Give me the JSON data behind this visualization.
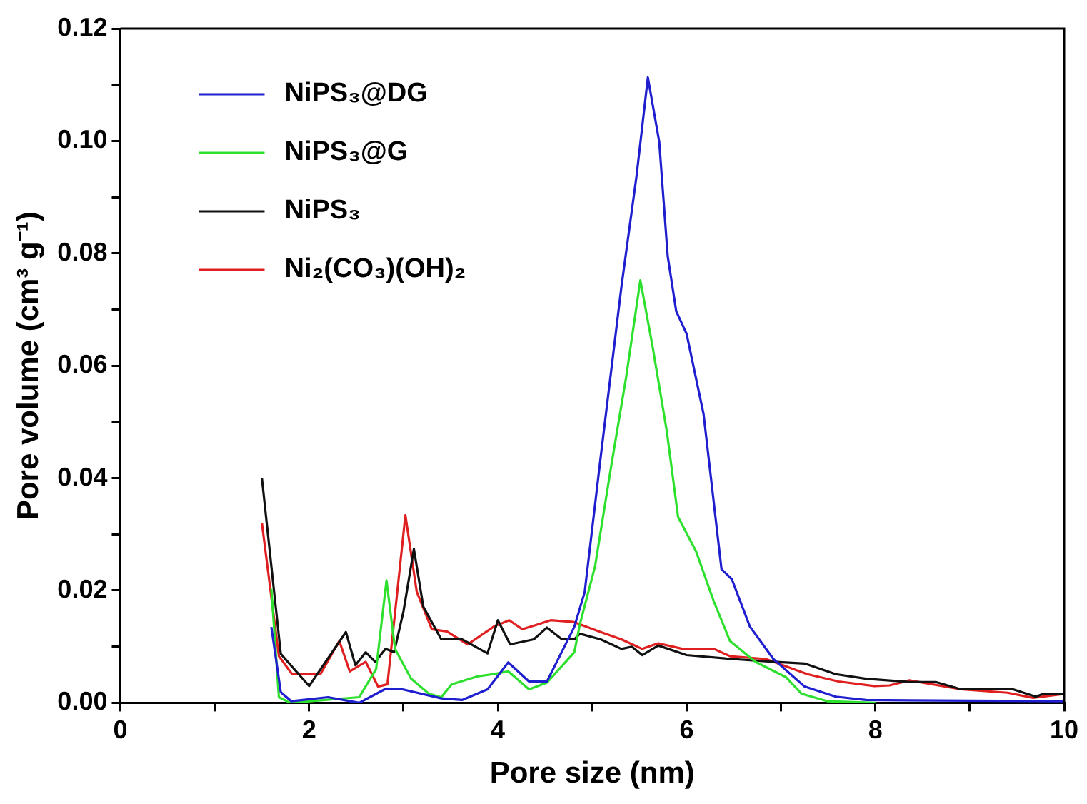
{
  "chart_data": {
    "type": "line",
    "xlabel": "Pore size (nm)",
    "ylabel": "Pore volume (cm³ g⁻¹)",
    "xlim": [
      0,
      10
    ],
    "ylim": [
      0,
      0.12
    ],
    "xticks": [
      0,
      {
        "value": 1,
        "label": null
      },
      2,
      {
        "value": 3,
        "label": null
      },
      4,
      {
        "value": 5,
        "label": null
      },
      6,
      {
        "value": 7,
        "label": null
      },
      8,
      {
        "value": 9,
        "label": null
      },
      10
    ],
    "yticks": [
      {
        "value": 0,
        "label": "0.00"
      },
      {
        "value": 0.01,
        "label": null
      },
      {
        "value": 0.02,
        "label": "0.02"
      },
      {
        "value": 0.03,
        "label": null
      },
      {
        "value": 0.04,
        "label": "0.04"
      },
      {
        "value": 0.05,
        "label": null
      },
      {
        "value": 0.06,
        "label": "0.06"
      },
      {
        "value": 0.07,
        "label": null
      },
      {
        "value": 0.08,
        "label": "0.08"
      },
      {
        "value": 0.09,
        "label": null
      },
      {
        "value": 0.1,
        "label": "0.10"
      },
      {
        "value": 0.11,
        "label": null
      },
      {
        "value": 0.12,
        "label": "0.12"
      }
    ],
    "legend": "top left",
    "marker": "none",
    "line_style": "solid",
    "series": [
      {
        "name": "NiPS₃@DG",
        "color": "#1f1fd0",
        "x": [
          1.6,
          1.7,
          1.81,
          2.2,
          2.53,
          2.8,
          2.99,
          3.4,
          3.62,
          3.89,
          4.11,
          4.33,
          4.52,
          4.81,
          4.92,
          5.09,
          5.31,
          5.47,
          5.59,
          5.71,
          5.8,
          5.89,
          6.0,
          6.18,
          6.37,
          6.48,
          6.67,
          6.92,
          7.25,
          7.58,
          7.9,
          10
        ],
        "values": [
          0.0135,
          0.0019,
          0.0003,
          0.001,
          0,
          0.0024,
          0.0024,
          0.0008,
          0.0005,
          0.0024,
          0.0072,
          0.0038,
          0.0038,
          0.0135,
          0.0197,
          0.0438,
          0.0741,
          0.0938,
          0.1113,
          0.0999,
          0.0795,
          0.0697,
          0.0657,
          0.0514,
          0.0238,
          0.022,
          0.0136,
          0.0078,
          0.0029,
          0.0011,
          0.0005,
          0.0003
        ]
      },
      {
        "name": "NiPS₃@G",
        "color": "#2ee02e",
        "x": [
          1.6,
          1.68,
          1.8,
          2.53,
          2.71,
          2.82,
          2.91,
          3.08,
          3.27,
          3.4,
          3.51,
          3.78,
          3.95,
          4.11,
          4.33,
          4.52,
          4.81,
          4.87,
          5.03,
          5.2,
          5.36,
          5.51,
          5.64,
          5.79,
          5.91,
          6.1,
          6.29,
          6.46,
          6.73,
          7.05,
          7.22,
          7.49,
          8
        ],
        "values": [
          0.0203,
          0.001,
          0,
          0.001,
          0.006,
          0.0218,
          0.0096,
          0.0043,
          0.0016,
          0.001,
          0.0033,
          0.0047,
          0.0051,
          0.0056,
          0.0024,
          0.0036,
          0.009,
          0.014,
          0.0243,
          0.042,
          0.058,
          0.0752,
          0.0634,
          0.0484,
          0.0331,
          0.027,
          0.018,
          0.011,
          0.0073,
          0.0046,
          0.0016,
          0.0003,
          0
        ]
      },
      {
        "name": "NiPS₃",
        "color": "#111111",
        "x": [
          1.5,
          1.7,
          2.0,
          2.39,
          2.49,
          2.6,
          2.7,
          2.81,
          2.9,
          3.0,
          3.11,
          3.21,
          3.4,
          3.62,
          3.89,
          4.0,
          4.13,
          4.38,
          4.52,
          4.68,
          4.81,
          4.87,
          5.09,
          5.31,
          5.42,
          5.53,
          5.7,
          6.0,
          6.48,
          6.92,
          7.25,
          7.58,
          7.9,
          8.36,
          8.64,
          8.91,
          9.46,
          9.7,
          9.78,
          10
        ],
        "values": [
          0.04,
          0.0087,
          0.003,
          0.0126,
          0.0067,
          0.009,
          0.0073,
          0.0096,
          0.009,
          0.0163,
          0.0274,
          0.0171,
          0.0113,
          0.0113,
          0.0088,
          0.0147,
          0.0104,
          0.0113,
          0.0134,
          0.0113,
          0.0113,
          0.0123,
          0.0113,
          0.0096,
          0.01,
          0.0085,
          0.0102,
          0.0085,
          0.0078,
          0.0073,
          0.007,
          0.0051,
          0.0043,
          0.0037,
          0.0037,
          0.0024,
          0.0024,
          0.0011,
          0.0016,
          0.0016
        ]
      },
      {
        "name": "Ni₂(CO₃)(OH)₂",
        "color": "#e02020",
        "x": [
          1.5,
          1.68,
          1.82,
          2.12,
          2.32,
          2.43,
          2.6,
          2.73,
          2.83,
          3.02,
          3.14,
          3.3,
          3.46,
          3.68,
          3.96,
          4.12,
          4.26,
          4.45,
          4.56,
          4.8,
          5.09,
          5.31,
          5.53,
          5.7,
          5.96,
          6.29,
          6.46,
          6.84,
          7.28,
          7.61,
          7.99,
          8.15,
          8.36,
          8.91,
          9.4,
          9.67,
          10
        ],
        "values": [
          0.032,
          0.0083,
          0.0051,
          0.0051,
          0.011,
          0.0056,
          0.0073,
          0.0029,
          0.0033,
          0.0334,
          0.0198,
          0.0131,
          0.0127,
          0.0104,
          0.0136,
          0.0147,
          0.0131,
          0.0141,
          0.0147,
          0.0144,
          0.0126,
          0.0113,
          0.0096,
          0.0106,
          0.0096,
          0.0096,
          0.0083,
          0.0078,
          0.0051,
          0.0038,
          0.003,
          0.0031,
          0.004,
          0.0024,
          0.0018,
          0.0009,
          0.0016
        ]
      }
    ]
  }
}
